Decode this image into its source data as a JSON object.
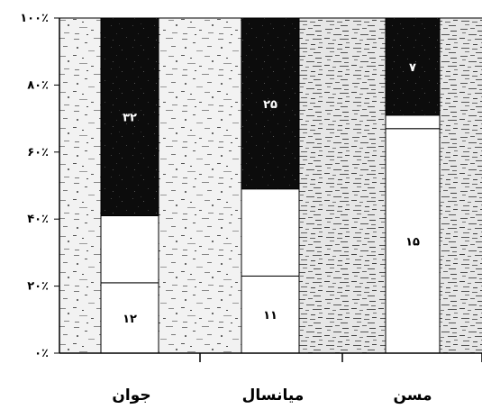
{
  "chart_data": {
    "type": "bar",
    "stacked": true,
    "percent": true,
    "categories": [
      "جوان",
      "میانسال",
      "مسن"
    ],
    "ylim": [
      0,
      100
    ],
    "y_ticks": [
      "۰٪",
      "۲۰٪",
      "۴۰٪",
      "۶۰٪",
      "۸۰٪",
      "۱۰۰٪"
    ],
    "grid": false,
    "legend": "none",
    "colors": {
      "bottom": "#ffffff",
      "middle": "#ffffff",
      "top": "#111111",
      "speckle_light": "#e2e2e2",
      "speckle_dark": "#cfcfcf"
    },
    "series": [
      {
        "values": [
          21,
          23,
          67
        ],
        "labels": [
          "۱۲",
          "۱۱",
          "۱۵"
        ]
      },
      {
        "values": [
          20,
          26,
          4
        ],
        "labels": [
          "",
          "",
          ""
        ]
      },
      {
        "values": [
          59,
          51,
          29
        ],
        "labels": [
          "۳۲",
          "۲۵",
          "۷"
        ]
      }
    ]
  }
}
